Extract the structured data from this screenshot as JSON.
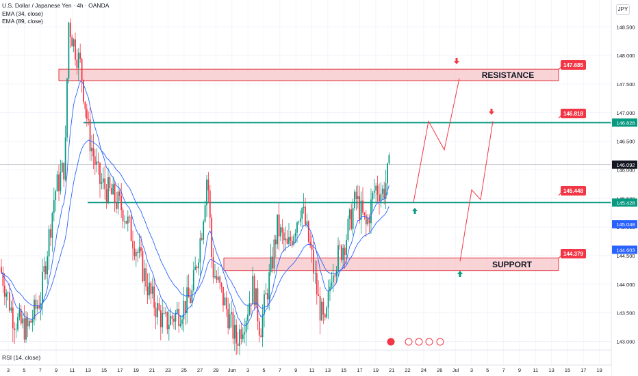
{
  "header": {
    "symbol_line": "U.S. Dollar / Japanese Yen · 4h · OANDA",
    "ema1_label": "EMA (34, close)",
    "ema2_label": "EMA (89, close)",
    "currency_button": "JPY"
  },
  "rsi_label": "RSI (14, close)",
  "colors": {
    "bull": "#089981",
    "bear": "#f23645",
    "ema": "#2962ff",
    "zone_fill": "#f7c5c9",
    "zone_border": "#e0353f",
    "level_line": "#089981",
    "projection": "#f23645"
  },
  "chart_data": {
    "type": "candlestick",
    "price_axis": {
      "ticks": [
        "148.500",
        "148.000",
        "147.500",
        "147.000",
        "146.500",
        "146.000",
        "145.500",
        "145.000",
        "144.500",
        "144.000",
        "143.500",
        "143.000"
      ],
      "range": [
        142.85,
        148.85
      ]
    },
    "time_axis": {
      "ticks": [
        "3",
        "5",
        "7",
        "9",
        "11",
        "13",
        "15",
        "17",
        "19",
        "21",
        "23",
        "25",
        "27",
        "29",
        "Jun",
        "3",
        "5",
        "7",
        "9",
        "11",
        "13",
        "15",
        "17",
        "19",
        "21",
        "22",
        "24",
        "26",
        "Jul",
        "3",
        "5",
        "7",
        "9",
        "11",
        "13",
        "15",
        "17",
        "19"
      ]
    },
    "candles_ohlc_summary": {
      "start_close": 144.3,
      "high_peak": 148.65,
      "low_trough": 142.85,
      "last_close": 146.092
    },
    "zones": [
      {
        "name": "RESISTANCE",
        "top": 147.76,
        "bottom": 147.56
      },
      {
        "name": "SUPPORT",
        "top": 144.46,
        "bottom": 144.24
      }
    ],
    "horizontal_levels": [
      146.826,
      145.428
    ],
    "level_labels": [
      {
        "text": "147.685",
        "color": "#f23645"
      },
      {
        "text": "146.818",
        "color": "#f23645"
      },
      {
        "text": "145.448",
        "color": "#f23645"
      },
      {
        "text": "144.379",
        "color": "#f23645"
      }
    ],
    "axis_badges": [
      {
        "text": "146.826",
        "color": "#089981"
      },
      {
        "text": "146.092",
        "color": "#131722"
      },
      {
        "text": "145.428",
        "color": "#089981"
      },
      {
        "text": "145.048",
        "color": "#2962ff"
      },
      {
        "text": "144.603",
        "color": "#2962ff"
      }
    ],
    "projection_path": [
      146.0,
      145.43,
      146.85,
      146.35,
      147.6
    ],
    "projection_path_2": [
      144.4,
      145.65,
      145.48,
      146.85
    ]
  }
}
